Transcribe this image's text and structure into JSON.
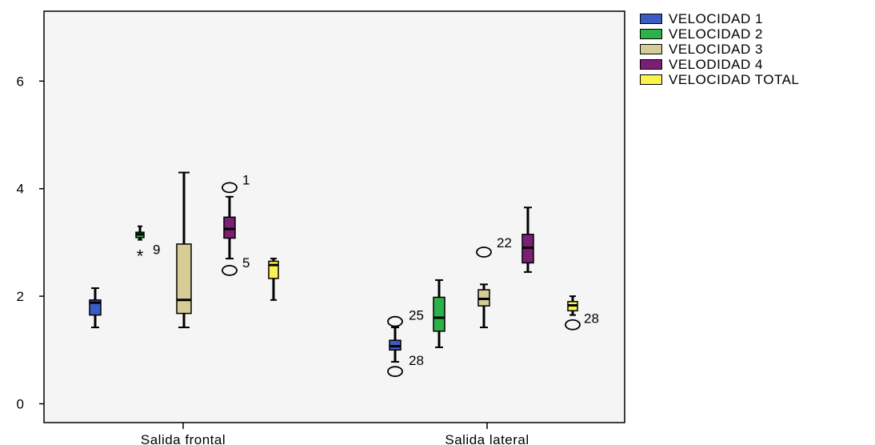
{
  "chart_data": {
    "type": "boxplot",
    "title": "",
    "xlabel": "",
    "ylabel": "",
    "ylim": [
      -0.35,
      7.3
    ],
    "yticks": [
      0,
      2,
      4,
      6
    ],
    "ytick_labels": [
      "0",
      "2",
      "4",
      "6"
    ],
    "grid": false,
    "legend_position": "top-right outside",
    "categories": [
      "Salida frontal",
      "Salida lateral"
    ],
    "series": [
      {
        "name": "VELOCIDAD 1",
        "color": "#3B5CC4",
        "boxes": [
          {
            "whisker_low": 1.42,
            "q1": 1.65,
            "median": 1.88,
            "q3": 1.93,
            "whisker_high": 2.15,
            "outliers": []
          },
          {
            "whisker_low": 0.78,
            "q1": 1.0,
            "median": 1.07,
            "q3": 1.18,
            "whisker_high": 1.42,
            "outliers": [
              {
                "value": 1.53,
                "type": "circle",
                "label": "25"
              },
              {
                "value": 0.6,
                "type": "circle",
                "label": "28"
              }
            ]
          }
        ]
      },
      {
        "name": "VELOCIDAD 2",
        "color": "#2DB14A",
        "boxes": [
          {
            "whisker_low": 3.05,
            "q1": 3.09,
            "median": 3.15,
            "q3": 3.19,
            "whisker_high": 3.3,
            "outliers": [
              {
                "value": 2.75,
                "type": "star",
                "label": "9"
              }
            ]
          },
          {
            "whisker_low": 1.05,
            "q1": 1.35,
            "median": 1.6,
            "q3": 1.98,
            "whisker_high": 2.3,
            "outliers": []
          }
        ]
      },
      {
        "name": "VELOCIDAD 3",
        "color": "#D6CC96",
        "boxes": [
          {
            "whisker_low": 1.42,
            "q1": 1.68,
            "median": 1.93,
            "q3": 2.97,
            "whisker_high": 4.3,
            "outliers": []
          },
          {
            "whisker_low": 1.42,
            "q1": 1.82,
            "median": 1.95,
            "q3": 2.12,
            "whisker_high": 2.22,
            "outliers": [
              {
                "value": 2.82,
                "type": "circle",
                "label": "22"
              }
            ]
          }
        ]
      },
      {
        "name": "VELODIDAD 4",
        "color": "#7A1F74",
        "boxes": [
          {
            "whisker_low": 2.7,
            "q1": 3.08,
            "median": 3.25,
            "q3": 3.47,
            "whisker_high": 3.85,
            "outliers": [
              {
                "value": 4.02,
                "type": "circle",
                "label": "1"
              },
              {
                "value": 2.48,
                "type": "circle",
                "label": "5"
              }
            ]
          },
          {
            "whisker_low": 2.45,
            "q1": 2.62,
            "median": 2.9,
            "q3": 3.15,
            "whisker_high": 3.65,
            "outliers": []
          }
        ]
      },
      {
        "name": "VELOCIDAD TOTAL",
        "color": "#FAF34E",
        "boxes": [
          {
            "whisker_low": 1.93,
            "q1": 2.33,
            "median": 2.58,
            "q3": 2.65,
            "whisker_high": 2.7,
            "outliers": []
          },
          {
            "whisker_low": 1.65,
            "q1": 1.73,
            "median": 1.83,
            "q3": 1.9,
            "whisker_high": 2.0,
            "outliers": [
              {
                "value": 1.47,
                "type": "circle",
                "label": "28"
              }
            ]
          }
        ]
      }
    ]
  }
}
